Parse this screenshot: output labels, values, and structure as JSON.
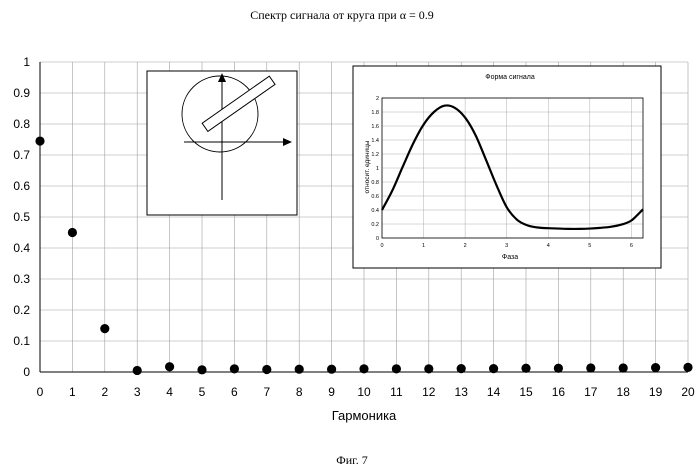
{
  "title": "Спектр сигнала от круга при α = 0.9",
  "caption": "Фиг. 7",
  "chart_data": [
    {
      "type": "scatter",
      "title": "",
      "xlabel": "Гармоника",
      "ylabel": "",
      "xlim": [
        0,
        20
      ],
      "ylim": [
        0,
        1
      ],
      "x_ticks": [
        "0",
        "1",
        "2",
        "3",
        "4",
        "5",
        "6",
        "7",
        "8",
        "9",
        "10",
        "11",
        "12",
        "13",
        "14",
        "15",
        "16",
        "17",
        "18",
        "19",
        "20"
      ],
      "y_ticks": [
        "0",
        "0.1",
        "0.2",
        "0.3",
        "0.4",
        "0.5",
        "0.6",
        "0.7",
        "0.8",
        "0.9",
        "1"
      ],
      "grid": true,
      "x": [
        0,
        1,
        2,
        3,
        4,
        5,
        6,
        7,
        8,
        9,
        10,
        11,
        12,
        13,
        14,
        15,
        16,
        17,
        18,
        19,
        20
      ],
      "y": [
        0.745,
        0.45,
        0.14,
        0.005,
        0.017,
        0.007,
        0.01,
        0.008,
        0.009,
        0.009,
        0.01,
        0.01,
        0.01,
        0.011,
        0.011,
        0.012,
        0.012,
        0.013,
        0.013,
        0.014,
        0.015
      ]
    },
    {
      "type": "line",
      "title": "Форма сигнала",
      "xlabel": "Фаза",
      "ylabel": "относит. единицы",
      "xlim": [
        0,
        6.28
      ],
      "ylim": [
        0,
        2
      ],
      "x_ticks": [
        "0",
        "1",
        "2",
        "3",
        "4",
        "5",
        "6"
      ],
      "y_ticks": [
        "0",
        "0.2",
        "0.4",
        "0.6",
        "0.8",
        "1",
        "1.2",
        "1.4",
        "1.6",
        "1.8",
        "2"
      ],
      "grid": true,
      "x": [
        0,
        0.25,
        0.5,
        0.75,
        1.0,
        1.25,
        1.5,
        1.75,
        2.0,
        2.25,
        2.5,
        2.75,
        3.0,
        3.25,
        3.5,
        3.75,
        4.0,
        4.25,
        4.5,
        4.75,
        5.0,
        5.25,
        5.5,
        5.75,
        6.0,
        6.28
      ],
      "y": [
        0.4,
        0.68,
        1.02,
        1.35,
        1.62,
        1.8,
        1.89,
        1.86,
        1.72,
        1.47,
        1.12,
        0.76,
        0.44,
        0.26,
        0.18,
        0.15,
        0.14,
        0.135,
        0.13,
        0.13,
        0.135,
        0.145,
        0.16,
        0.19,
        0.25,
        0.41
      ]
    }
  ]
}
